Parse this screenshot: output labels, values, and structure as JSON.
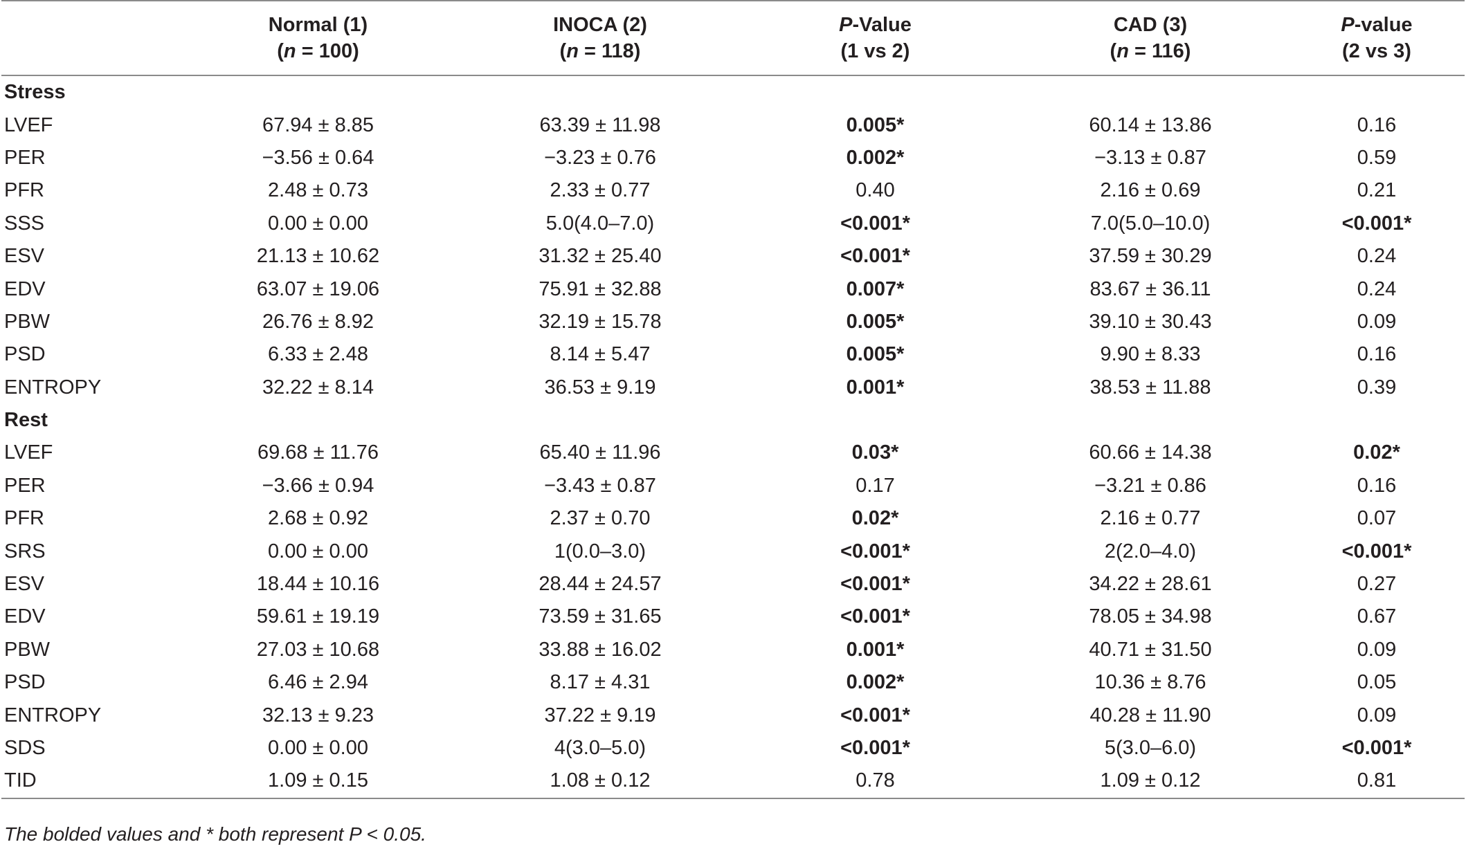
{
  "header": {
    "col0": "",
    "normal": {
      "line1": "Normal (1)",
      "line2_prefix": "(",
      "n": "n",
      "line2_suffix": " = 100)"
    },
    "inoca": {
      "line1": "INOCA (2)",
      "line2_prefix": "(",
      "n": "n",
      "line2_suffix": " = 118)"
    },
    "p12": {
      "p": "P",
      "line1_suffix": "-Value",
      "line2": "(1 vs 2)"
    },
    "cad": {
      "line1": "CAD (3)",
      "line2_prefix": "(",
      "n": "n",
      "line2_suffix": " = 116)"
    },
    "p23": {
      "p": "P",
      "line1_suffix": "-value",
      "line2": "(2 vs 3)"
    }
  },
  "sections": [
    {
      "title": "Stress",
      "rows": [
        {
          "label": "LVEF",
          "normal": "67.94 ± 8.85",
          "inoca": "63.39 ± 11.98",
          "p12": "0.005*",
          "p12_sig": true,
          "cad": "60.14 ± 13.86",
          "p23": "0.16",
          "p23_sig": false
        },
        {
          "label": "PER",
          "normal": "−3.56 ± 0.64",
          "inoca": "−3.23 ± 0.76",
          "p12": "0.002*",
          "p12_sig": true,
          "cad": "−3.13 ± 0.87",
          "p23": "0.59",
          "p23_sig": false
        },
        {
          "label": "PFR",
          "normal": "2.48 ± 0.73",
          "inoca": "2.33 ± 0.77",
          "p12": "0.40",
          "p12_sig": false,
          "cad": "2.16 ± 0.69",
          "p23": "0.21",
          "p23_sig": false
        },
        {
          "label": "SSS",
          "normal": "0.00 ± 0.00",
          "inoca": "5.0(4.0–7.0)",
          "p12": "<0.001*",
          "p12_sig": true,
          "cad": "7.0(5.0–10.0)",
          "p23": "<0.001*",
          "p23_sig": true
        },
        {
          "label": "ESV",
          "normal": "21.13 ± 10.62",
          "inoca": "31.32 ± 25.40",
          "p12": "<0.001*",
          "p12_sig": true,
          "cad": "37.59 ± 30.29",
          "p23": "0.24",
          "p23_sig": false
        },
        {
          "label": "EDV",
          "normal": "63.07 ± 19.06",
          "inoca": "75.91 ± 32.88",
          "p12": "0.007*",
          "p12_sig": true,
          "cad": "83.67 ± 36.11",
          "p23": "0.24",
          "p23_sig": false
        },
        {
          "label": "PBW",
          "normal": "26.76 ± 8.92",
          "inoca": "32.19 ± 15.78",
          "p12": "0.005*",
          "p12_sig": true,
          "cad": "39.10 ± 30.43",
          "p23": "0.09",
          "p23_sig": false
        },
        {
          "label": "PSD",
          "normal": "6.33 ± 2.48",
          "inoca": "8.14 ± 5.47",
          "p12": "0.005*",
          "p12_sig": true,
          "cad": "9.90 ± 8.33",
          "p23": "0.16",
          "p23_sig": false
        },
        {
          "label": "ENTROPY",
          "normal": "32.22 ± 8.14",
          "inoca": "36.53 ± 9.19",
          "p12": "0.001*",
          "p12_sig": true,
          "cad": "38.53 ± 11.88",
          "p23": "0.39",
          "p23_sig": false
        }
      ]
    },
    {
      "title": "Rest",
      "rows": [
        {
          "label": "LVEF",
          "normal": "69.68 ± 11.76",
          "inoca": "65.40 ± 11.96",
          "p12": "0.03*",
          "p12_sig": true,
          "cad": "60.66 ± 14.38",
          "p23": "0.02*",
          "p23_sig": true
        },
        {
          "label": "PER",
          "normal": "−3.66 ± 0.94",
          "inoca": "−3.43 ± 0.87",
          "p12": "0.17",
          "p12_sig": false,
          "cad": "−3.21 ± 0.86",
          "p23": "0.16",
          "p23_sig": false
        },
        {
          "label": "PFR",
          "normal": "2.68 ± 0.92",
          "inoca": "2.37 ± 0.70",
          "p12": "0.02*",
          "p12_sig": true,
          "cad": "2.16 ± 0.77",
          "p23": "0.07",
          "p23_sig": false
        },
        {
          "label": "SRS",
          "normal": "0.00 ± 0.00",
          "inoca": "1(0.0–3.0)",
          "p12": "<0.001*",
          "p12_sig": true,
          "cad": "2(2.0–4.0)",
          "p23": "<0.001*",
          "p23_sig": true
        },
        {
          "label": "ESV",
          "normal": "18.44 ± 10.16",
          "inoca": "28.44 ± 24.57",
          "p12": "<0.001*",
          "p12_sig": true,
          "cad": "34.22 ± 28.61",
          "p23": "0.27",
          "p23_sig": false
        },
        {
          "label": "EDV",
          "normal": "59.61 ± 19.19",
          "inoca": "73.59 ± 31.65",
          "p12": "<0.001*",
          "p12_sig": true,
          "cad": "78.05 ± 34.98",
          "p23": "0.67",
          "p23_sig": false
        },
        {
          "label": "PBW",
          "normal": "27.03 ± 10.68",
          "inoca": "33.88 ± 16.02",
          "p12": "0.001*",
          "p12_sig": true,
          "cad": "40.71 ± 31.50",
          "p23": "0.09",
          "p23_sig": false
        },
        {
          "label": "PSD",
          "normal": "6.46 ± 2.94",
          "inoca": "8.17 ± 4.31",
          "p12": "0.002*",
          "p12_sig": true,
          "cad": "10.36 ± 8.76",
          "p23": "0.05",
          "p23_sig": false
        },
        {
          "label": "ENTROPY",
          "normal": "32.13 ± 9.23",
          "inoca": "37.22 ± 9.19",
          "p12": "<0.001*",
          "p12_sig": true,
          "cad": "40.28 ± 11.90",
          "p23": "0.09",
          "p23_sig": false
        },
        {
          "label": "SDS",
          "normal": "0.00 ± 0.00",
          "inoca": "4(3.0–5.0)",
          "p12": "<0.001*",
          "p12_sig": true,
          "cad": "5(3.0–6.0)",
          "p23": "<0.001*",
          "p23_sig": true
        },
        {
          "label": "TID",
          "normal": "1.09 ± 0.15",
          "inoca": "1.08 ± 0.12",
          "p12": "0.78",
          "p12_sig": false,
          "cad": "1.09 ± 0.12",
          "p23": "0.81",
          "p23_sig": false
        }
      ]
    }
  ],
  "footnote": "The bolded values and * both represent P < 0.05."
}
